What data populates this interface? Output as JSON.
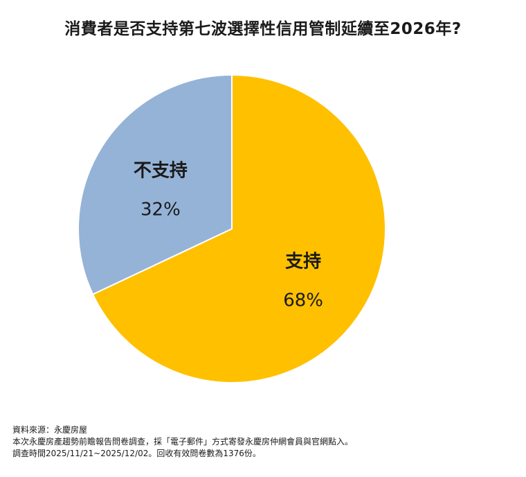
{
  "title": "消費者是否支持第七波選擇性信用管制延續至2026年?",
  "chart_data": {
    "type": "pie",
    "title": "消費者是否支持第七波選擇性信用管制延續至2026年?",
    "slices": [
      {
        "label": "支持",
        "value": 68,
        "display": "68%",
        "color": "#FFC000"
      },
      {
        "label": "不支持",
        "value": 32,
        "display": "32%",
        "color": "#95B3D7"
      }
    ]
  },
  "notes": {
    "source": "資料來源：永慶房屋",
    "line1": "本次永慶房產趨勢前瞻報告問卷調查，採「電子郵件」方式寄發永慶房仲網會員與官網點入。",
    "line2": "調查時間2025/11/21~2025/12/02。回收有效問卷數為1376份。"
  }
}
